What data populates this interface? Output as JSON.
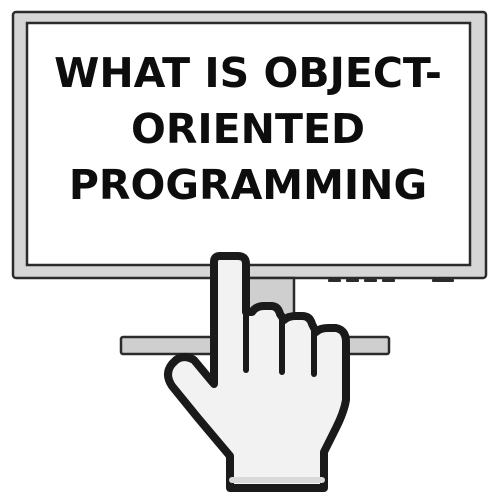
{
  "headline": {
    "line1": "WHAT IS OBJECT-",
    "line2": "ORIENTED",
    "line3": "PROGRAMMING"
  },
  "colors": {
    "monitor_frame": "#d6d6d6",
    "outline": "#2b2b2b",
    "screen": "#ffffff",
    "stand": "#cfcfcf",
    "hand_fill": "#f2f2f2",
    "hand_outline": "#1a1a1a",
    "text": "#0d0d0d"
  },
  "icons": {
    "monitor": "monitor-icon",
    "cursor": "pointing-hand-cursor-icon"
  }
}
